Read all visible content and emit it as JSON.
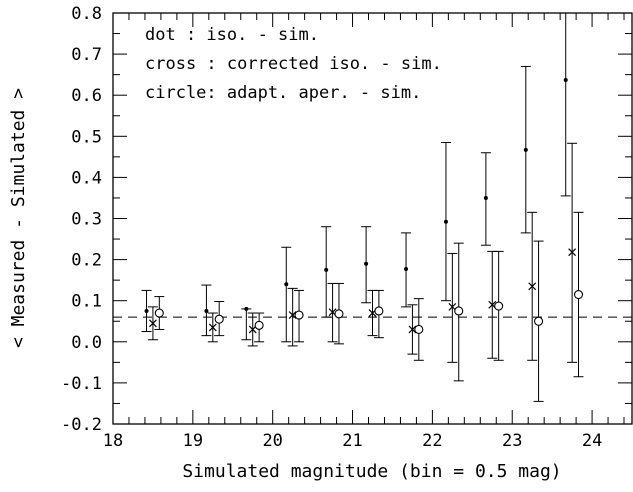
{
  "chart_data": {
    "type": "scatter",
    "xlabel": "Simulated magnitude (bin = 0.5 mag)",
    "ylabel": "< Measured - Simulated >",
    "xlim": [
      18,
      24.5
    ],
    "ylim": [
      -0.2,
      0.8
    ],
    "x_ticks": [
      "18",
      "19",
      "20",
      "21",
      "22",
      "23",
      "24"
    ],
    "y_ticks": [
      "-0.2",
      "-0.1",
      "0.0",
      "0.1",
      "0.2",
      "0.3",
      "0.4",
      "0.5",
      "0.6",
      "0.7",
      "0.8"
    ],
    "grid": false,
    "reference_line": {
      "y": 0.06,
      "style": "dashed"
    },
    "legend": [
      "dot : iso. - sim.",
      "cross : corrected iso. - sim.",
      "circle: adapt. aper. - sim."
    ],
    "series": [
      {
        "marker": "dot",
        "points": [
          {
            "x": 18.42,
            "y": 0.075,
            "lo": 0.025,
            "hi": 0.125
          },
          {
            "x": 19.17,
            "y": 0.075,
            "lo": 0.015,
            "hi": 0.138
          },
          {
            "x": 19.67,
            "y": 0.08,
            "lo": 0.005,
            "hi": 0.08
          },
          {
            "x": 20.17,
            "y": 0.14,
            "lo": 0.0,
            "hi": 0.23
          },
          {
            "x": 20.67,
            "y": 0.175,
            "lo": 0.06,
            "hi": 0.28
          },
          {
            "x": 21.17,
            "y": 0.19,
            "lo": 0.095,
            "hi": 0.28
          },
          {
            "x": 21.67,
            "y": 0.177,
            "lo": 0.085,
            "hi": 0.265
          },
          {
            "x": 22.17,
            "y": 0.292,
            "lo": 0.1,
            "hi": 0.485
          },
          {
            "x": 22.67,
            "y": 0.35,
            "lo": 0.235,
            "hi": 0.46
          },
          {
            "x": 23.17,
            "y": 0.467,
            "lo": 0.265,
            "hi": 0.67
          },
          {
            "x": 23.67,
            "y": 0.637,
            "lo": 0.355,
            "hi": 0.8
          }
        ]
      },
      {
        "marker": "cross",
        "points": [
          {
            "x": 18.5,
            "y": 0.045,
            "lo": 0.005,
            "hi": 0.085
          },
          {
            "x": 19.25,
            "y": 0.035,
            "lo": 0.0,
            "hi": 0.07
          },
          {
            "x": 19.75,
            "y": 0.03,
            "lo": -0.01,
            "hi": 0.07
          },
          {
            "x": 20.25,
            "y": 0.065,
            "lo": -0.01,
            "hi": 0.13
          },
          {
            "x": 20.75,
            "y": 0.072,
            "lo": 0.0,
            "hi": 0.142
          },
          {
            "x": 21.25,
            "y": 0.07,
            "lo": 0.015,
            "hi": 0.125
          },
          {
            "x": 21.75,
            "y": 0.03,
            "lo": -0.03,
            "hi": 0.09
          },
          {
            "x": 22.25,
            "y": 0.085,
            "lo": -0.05,
            "hi": 0.215
          },
          {
            "x": 22.75,
            "y": 0.09,
            "lo": -0.04,
            "hi": 0.22
          },
          {
            "x": 23.25,
            "y": 0.135,
            "lo": -0.045,
            "hi": 0.315
          },
          {
            "x": 23.75,
            "y": 0.218,
            "lo": -0.05,
            "hi": 0.483
          }
        ]
      },
      {
        "marker": "circle",
        "points": [
          {
            "x": 18.58,
            "y": 0.07,
            "lo": 0.03,
            "hi": 0.11
          },
          {
            "x": 19.33,
            "y": 0.055,
            "lo": 0.015,
            "hi": 0.098
          },
          {
            "x": 19.83,
            "y": 0.04,
            "lo": 0.0,
            "hi": 0.07
          },
          {
            "x": 20.33,
            "y": 0.065,
            "lo": 0.0,
            "hi": 0.125
          },
          {
            "x": 20.83,
            "y": 0.068,
            "lo": -0.005,
            "hi": 0.142
          },
          {
            "x": 21.33,
            "y": 0.075,
            "lo": 0.01,
            "hi": 0.125
          },
          {
            "x": 21.83,
            "y": 0.03,
            "lo": -0.045,
            "hi": 0.105
          },
          {
            "x": 22.33,
            "y": 0.075,
            "lo": -0.095,
            "hi": 0.24
          },
          {
            "x": 22.83,
            "y": 0.087,
            "lo": -0.045,
            "hi": 0.22
          },
          {
            "x": 23.33,
            "y": 0.05,
            "lo": -0.145,
            "hi": 0.245
          },
          {
            "x": 23.83,
            "y": 0.115,
            "lo": -0.085,
            "hi": 0.315
          }
        ]
      }
    ]
  }
}
